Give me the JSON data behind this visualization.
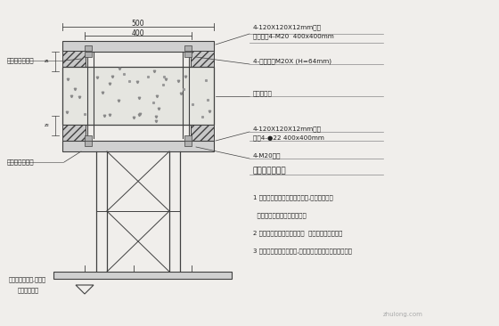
{
  "bg_color": "#f0eeeb",
  "line_color": "#404040",
  "text_color": "#202020",
  "notes": [
    "1 图中实线部分为整体式预埋件,按我方提供的",
    "  中心图尺寸由土建施工预埋。",
    "2 图中虚线部分为焊接式支架  由我方施工时装配。",
    "3 本安装图仅供施工参考,具体做法可根据现场条件确定。"
  ],
  "label_bolt_top": "螺栓与钢板满焊",
  "label_nut_left": "螺母与钢板满焊",
  "label_r1a": "4-120X120X12mm钢板",
  "label_r1b": "钻孔攻丝4-M20  400x400mm",
  "label_r2": "4-双头螺栓M20X (H=64mm)",
  "label_r3": "混凝土楼板",
  "label_r4a": "4-120X120X12mm钢板",
  "label_r4b": "钻孔4-●22 400x400mm",
  "label_r5": "4-M20螺母",
  "label_r6": "螺母与钢板满焊",
  "bottom1": "标高窗框据吊塔,无影灯",
  "bottom2": "厂家参数而定",
  "dim_500": "500",
  "dim_400": "400",
  "watermark": "zhulong.com"
}
